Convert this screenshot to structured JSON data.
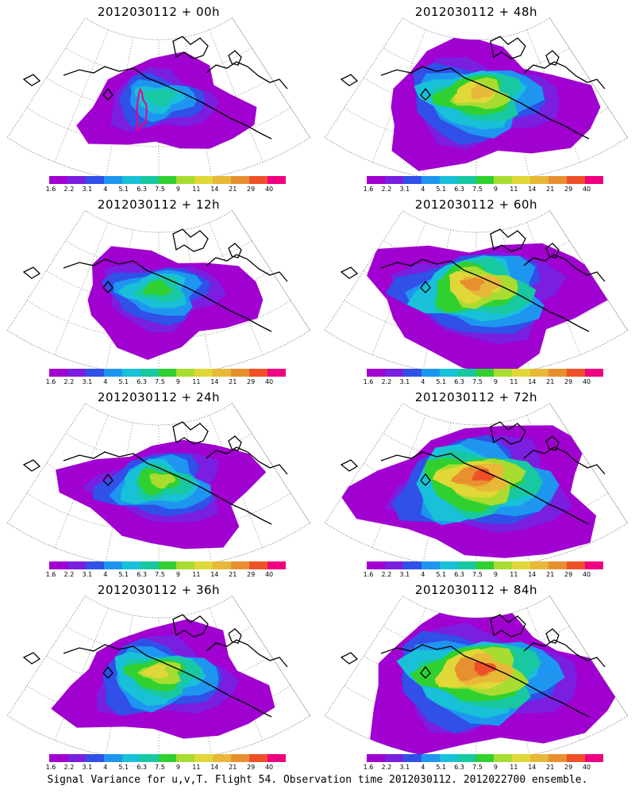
{
  "caption": "Signal Variance for u,v,T. Flight 54. Observation time 2012030112. 2012022700 ensemble.",
  "colorbar": {
    "ticks": [
      "1.6",
      "2.2",
      "3.1",
      "4",
      "5.1",
      "6.3",
      "7.5",
      "9",
      "11",
      "14",
      "21",
      "29",
      "40"
    ],
    "colors": [
      "#a000d0",
      "#7a1ee0",
      "#3050e8",
      "#1e96f0",
      "#18c0d8",
      "#18c8a0",
      "#30d030",
      "#a8dc30",
      "#e0d838",
      "#e8b838",
      "#e89030",
      "#f05028",
      "#f00080"
    ]
  },
  "coastline_color": "#000000",
  "chart_data": [
    {
      "type": "heatmap",
      "title": "2012030112 + 00h",
      "level": 1
    },
    {
      "type": "heatmap",
      "title": "2012030112 + 48h",
      "level": 5
    },
    {
      "type": "heatmap",
      "title": "2012030112 + 12h",
      "level": 2
    },
    {
      "type": "heatmap",
      "title": "2012030112 + 60h",
      "level": 6
    },
    {
      "type": "heatmap",
      "title": "2012030112 + 24h",
      "level": 3
    },
    {
      "type": "heatmap",
      "title": "2012030112 + 72h",
      "level": 7
    },
    {
      "type": "heatmap",
      "title": "2012030112 + 36h",
      "level": 4
    },
    {
      "type": "heatmap",
      "title": "2012030112 + 84h",
      "level": 8
    }
  ]
}
